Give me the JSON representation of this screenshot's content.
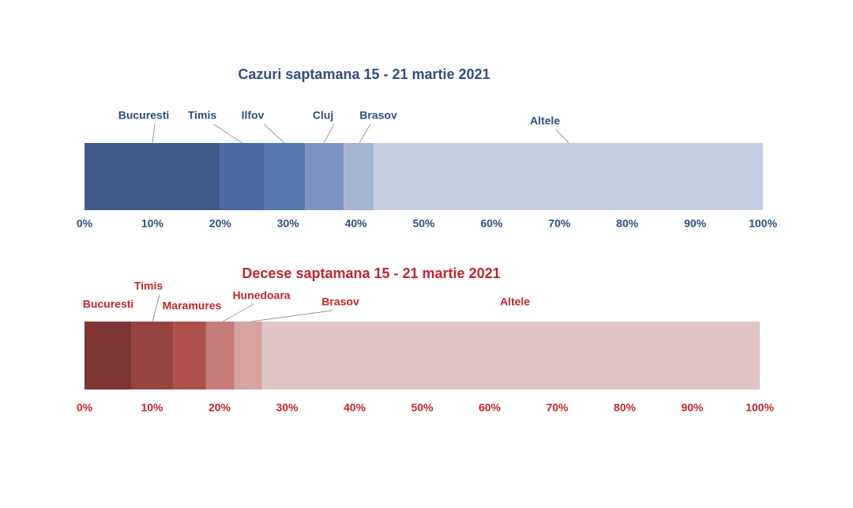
{
  "chart_data": [
    {
      "type": "bar",
      "orientation": "horizontal",
      "stacked": true,
      "title": "Cazuri saptamana 15 - 21 martie 2021",
      "color": "#2f4f80",
      "series": [
        {
          "name": "Bucuresti",
          "color": "#3f5a87",
          "values": [
            20
          ]
        },
        {
          "name": "Timis",
          "color": "#4a6aa0",
          "values": [
            6.5
          ]
        },
        {
          "name": "Ilfov",
          "color": "#5578ae",
          "values": [
            6
          ]
        },
        {
          "name": "Cluj",
          "color": "#7d94c2",
          "values": [
            5.7
          ]
        },
        {
          "name": "Brasov",
          "color": "#a6b3d4",
          "values": [
            4.4
          ]
        },
        {
          "name": "Altele",
          "color": "#c5cee2",
          "values": [
            57.4
          ]
        }
      ],
      "xlim": [
        0,
        100
      ],
      "xticks": [
        {
          "value": 0,
          "label": "0%"
        },
        {
          "value": 10,
          "label": "10%"
        },
        {
          "value": 20,
          "label": "20%"
        },
        {
          "value": 30,
          "label": "30%"
        },
        {
          "value": 40,
          "label": "40%"
        },
        {
          "value": 50,
          "label": "50%"
        },
        {
          "value": 60,
          "label": "60%"
        },
        {
          "value": 70,
          "label": "70%"
        },
        {
          "value": 80,
          "label": "80%"
        },
        {
          "value": 90,
          "label": "90%"
        },
        {
          "value": 100,
          "label": "100%"
        }
      ]
    },
    {
      "type": "bar",
      "orientation": "horizontal",
      "stacked": true,
      "title": "Decese saptamana 15 - 21 martie 2021",
      "color": "#c0262c",
      "series": [
        {
          "name": "Bucuresti",
          "color": "#7e3533",
          "values": [
            7
          ]
        },
        {
          "name": "Timis",
          "color": "#954440",
          "values": [
            6.1
          ]
        },
        {
          "name": "Maramures",
          "color": "#ae514a",
          "values": [
            4.9
          ]
        },
        {
          "name": "Hunedoara",
          "color": "#c67c7a",
          "values": [
            4.2
          ]
        },
        {
          "name": "Brasov",
          "color": "#d6a2a2",
          "values": [
            4.1
          ]
        },
        {
          "name": "Altele",
          "color": "#e2c4c6",
          "values": [
            73.7
          ]
        }
      ],
      "xlim": [
        0,
        100
      ],
      "xticks": [
        {
          "value": 0,
          "label": "0%"
        },
        {
          "value": 10,
          "label": "10%"
        },
        {
          "value": 20,
          "label": "20%"
        },
        {
          "value": 30,
          "label": "30%"
        },
        {
          "value": 40,
          "label": "40%"
        },
        {
          "value": 50,
          "label": "50%"
        },
        {
          "value": 60,
          "label": "60%"
        },
        {
          "value": 70,
          "label": "70%"
        },
        {
          "value": 80,
          "label": "80%"
        },
        {
          "value": 90,
          "label": "90%"
        },
        {
          "value": 100,
          "label": "100%"
        }
      ]
    }
  ]
}
